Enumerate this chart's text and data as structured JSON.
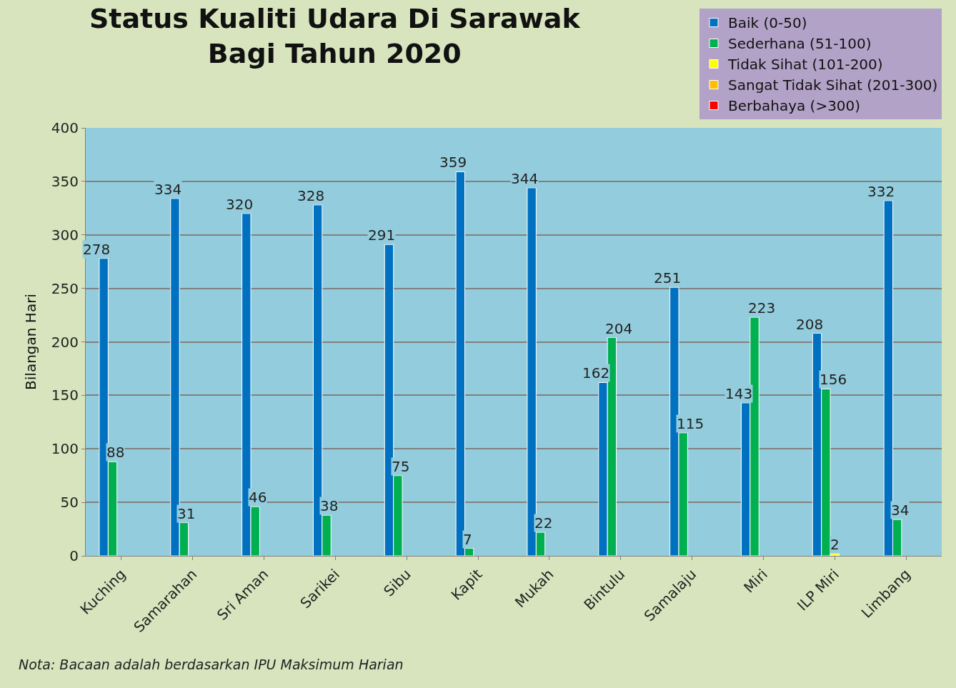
{
  "chart_data": {
    "type": "bar",
    "title": "Status Kualiti Udara Di Sarawak\nBagi Tahun 2020",
    "ylabel": "Bilangan Hari",
    "categories": [
      "Kuching",
      "Samarahan",
      "Sri Aman",
      "Sarikei",
      "Sibu",
      "Kapit",
      "Mukah",
      "Bintulu",
      "Samalaju",
      "Miri",
      "ILP Miri",
      "Limbang"
    ],
    "series": [
      {
        "name": "Baik (0-50)",
        "color": "#0070c0",
        "values": [
          278,
          334,
          320,
          328,
          291,
          359,
          344,
          162,
          251,
          143,
          208,
          332
        ]
      },
      {
        "name": "Sederhana (51-100)",
        "color": "#00b050",
        "values": [
          88,
          31,
          46,
          38,
          75,
          7,
          22,
          204,
          115,
          223,
          156,
          34
        ]
      },
      {
        "name": "Tidak Sihat (101-200)",
        "color": "#ffff00",
        "values": [
          null,
          null,
          null,
          null,
          null,
          null,
          null,
          null,
          null,
          null,
          2,
          null
        ]
      },
      {
        "name": "Sangat Tidak Sihat (201-300)",
        "color": "#ffc000",
        "values": [
          null,
          null,
          null,
          null,
          null,
          null,
          null,
          null,
          null,
          null,
          null,
          null
        ]
      },
      {
        "name": "Berbahaya (>300)",
        "color": "#ff0000",
        "values": [
          null,
          null,
          null,
          null,
          null,
          null,
          null,
          null,
          null,
          null,
          null,
          null
        ]
      }
    ],
    "ylim": [
      0,
      400
    ],
    "yticks": [
      0,
      50,
      100,
      150,
      200,
      250,
      300,
      350,
      400
    ],
    "grid": "y",
    "legend": "top right",
    "data_labels": true,
    "annotations": [
      "Nota: Bacaan adalah berdasarkan IPU Maksimum Harian"
    ]
  }
}
